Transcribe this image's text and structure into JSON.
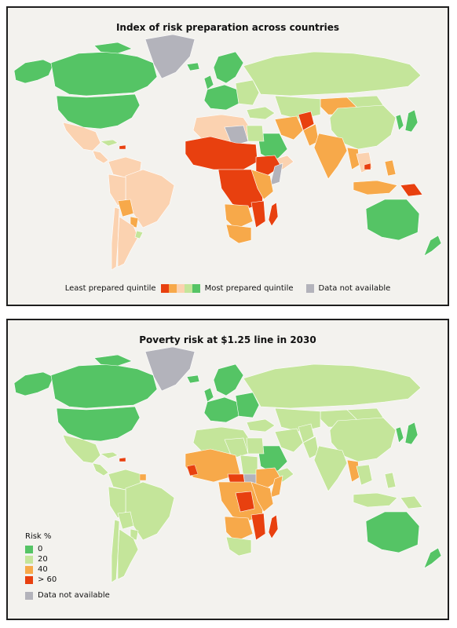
{
  "colors": {
    "ocean": "#f3f2ee",
    "na": "#b3b3bb",
    "q1": "#e8400f",
    "q2": "#f7a94a",
    "q3": "#fbd2b0",
    "q4": "#c4e59a",
    "q5": "#55c465",
    "r0": "#55c465",
    "r20": "#c4e59a",
    "r40": "#f7a94a",
    "r60": "#e8400f"
  },
  "maps": [
    {
      "title": "Index of risk preparation across countries",
      "legend": {
        "least_label": "Least prepared quintile",
        "most_label": "Most prepared quintile",
        "na_label": "Data not available",
        "quintile_colors": [
          "#e8400f",
          "#f7a94a",
          "#fbd2b0",
          "#c4e59a",
          "#55c465"
        ]
      }
    },
    {
      "title": "Poverty risk at $1.25 line in 2030",
      "legend": {
        "title": "Risk %",
        "items": [
          {
            "label": "0",
            "color": "#55c465"
          },
          {
            "label": "20",
            "color": "#c4e59a"
          },
          {
            "label": "40",
            "color": "#f7a94a"
          },
          {
            "label": "> 60",
            "color": "#e8400f"
          }
        ],
        "na_label": "Data not available"
      }
    }
  ]
}
